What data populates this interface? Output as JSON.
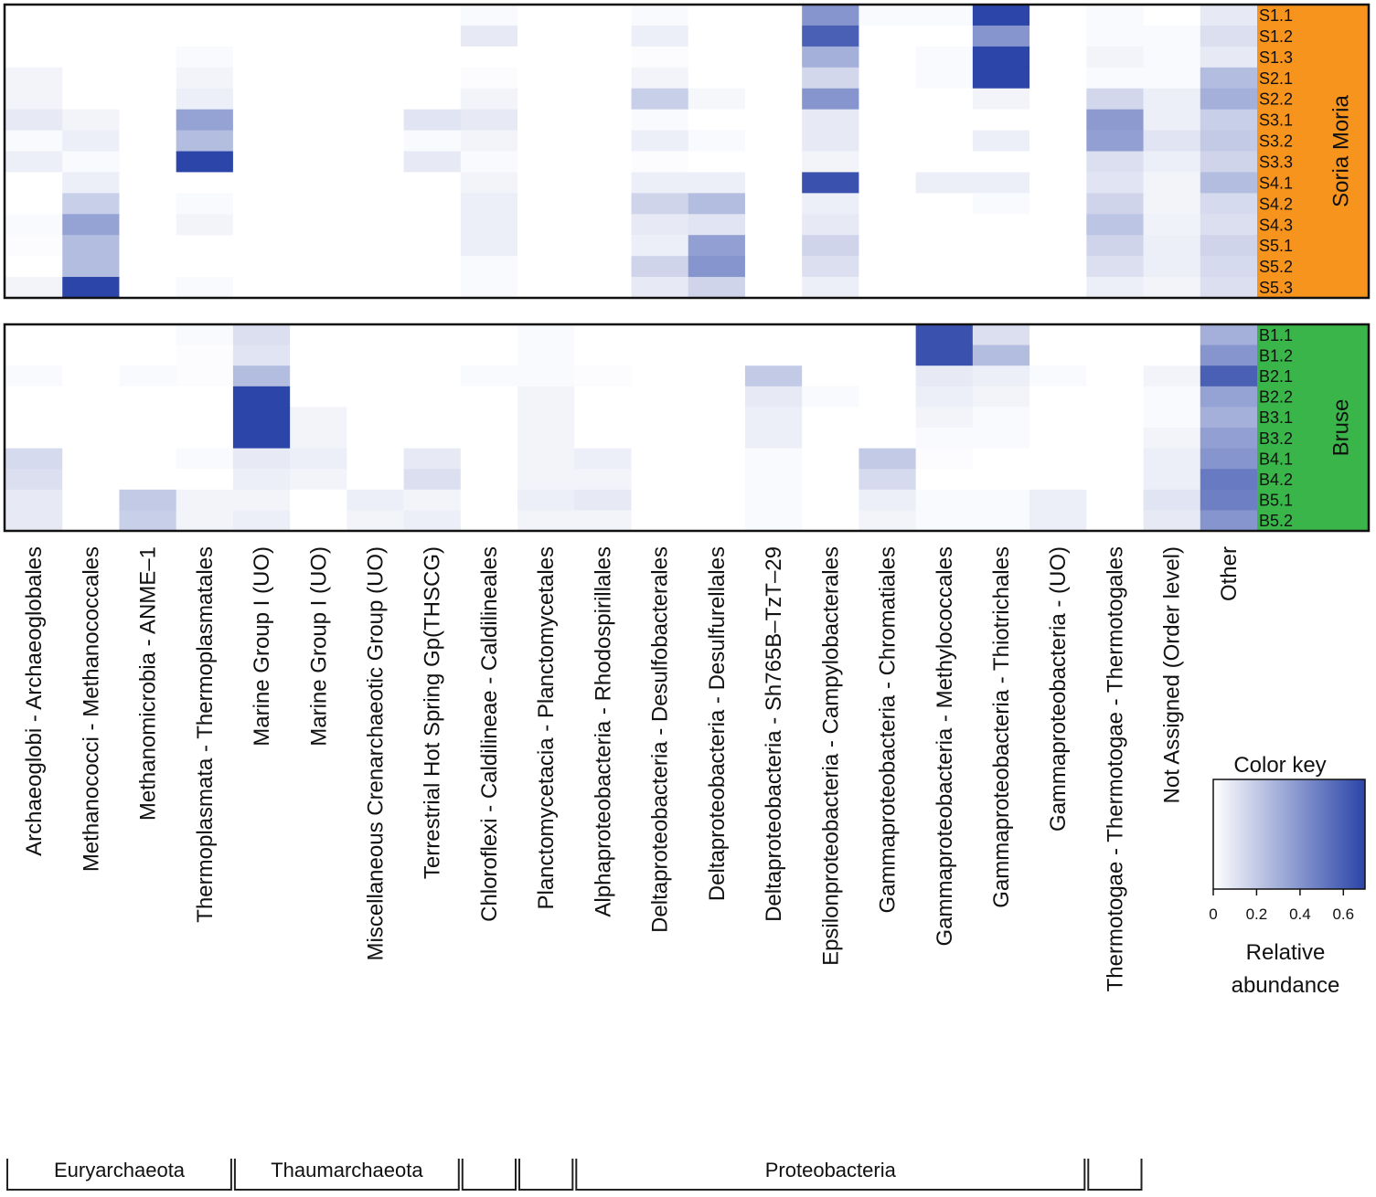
{
  "chart_data": {
    "type": "heatmap",
    "color_key": {
      "title": "Color key",
      "label_line1": "Relative",
      "label_line2": "abundance",
      "range": [
        0,
        0.7
      ],
      "ticks": [
        0,
        0.2,
        0.4,
        0.6
      ],
      "low_color": "#ffffff",
      "high_color": "#2b45a8"
    },
    "columns": [
      "Archaeoglobi - Archaeoglobales",
      "Methanococci - Methanococcales",
      "Methanomicrobia - ANME–1",
      "Thermoplasmata - Thermoplasmatales",
      "Marine Group I (UO)",
      "Marine Group I (UO)",
      "Miscellaneous Crenarchaeotic Group (UO)",
      "Terrestrial Hot Spring Gp(THSCG)",
      "Chloroflexi - Caldilineae - Caldilineales",
      "Planctomycetacia - Planctomycetales",
      "Alphaproteobacteria - Rhodospirillales",
      "Deltaproteobacteria - Desulfobacterales",
      "Deltaproteobacteria - Desulfurellales",
      "Deltaproteobacteria - Sh765B–TzT–29",
      "Epsilonproteobacteria - Campylobacterales",
      "Gammaproteobacteria - Chromatiales",
      "Gammaproteobacteria - Methylococcales",
      "Gammaproteobacteria - Thiotrichales",
      "Gammaproteobacteria -  (UO)",
      "Thermotogae - Thermotogae - Thermotogales",
      "Not Assigned (Order level)",
      "Other"
    ],
    "phyla": [
      {
        "name": "Euryarchaeota",
        "first_col": 0,
        "last_col": 3
      },
      {
        "name": "Thaumarchaeota",
        "first_col": 4,
        "last_col": 7
      },
      {
        "name": "",
        "first_col": 8,
        "last_col": 8
      },
      {
        "name": "",
        "first_col": 9,
        "last_col": 9
      },
      {
        "name": "Proteobacteria",
        "first_col": 10,
        "last_col": 18
      },
      {
        "name": "",
        "first_col": 19,
        "last_col": 19
      }
    ],
    "groups": [
      {
        "name": "Soria Moria",
        "color": "#f7941d",
        "rows": [
          "S1.1",
          "S1.2",
          "S1.3",
          "S2.1",
          "S2.2",
          "S3.1",
          "S3.2",
          "S3.3",
          "S4.1",
          "S4.2",
          "S4.3",
          "S5.1",
          "S5.2",
          "S5.3"
        ],
        "values": [
          [
            0,
            0,
            0,
            0,
            0,
            0,
            0,
            0,
            0.02,
            0,
            0,
            0.02,
            0,
            0,
            0.4,
            0.02,
            0.02,
            0.7,
            0,
            0.02,
            0,
            0.08
          ],
          [
            0,
            0,
            0,
            0,
            0,
            0,
            0,
            0,
            0.08,
            0,
            0,
            0.06,
            0,
            0,
            0.6,
            0,
            0,
            0.4,
            0,
            0.02,
            0.02,
            0.12
          ],
          [
            0,
            0,
            0,
            0.02,
            0,
            0,
            0,
            0,
            0,
            0,
            0,
            0.01,
            0,
            0,
            0.3,
            0,
            0.02,
            0.7,
            0,
            0.04,
            0.02,
            0.08
          ],
          [
            0.04,
            0,
            0,
            0.04,
            0,
            0,
            0,
            0,
            0.01,
            0,
            0,
            0.04,
            0,
            0,
            0.15,
            0,
            0.02,
            0.7,
            0,
            0.02,
            0.02,
            0.25
          ],
          [
            0.04,
            0,
            0,
            0.06,
            0,
            0,
            0,
            0,
            0.04,
            0,
            0,
            0.18,
            0.03,
            0,
            0.4,
            0,
            0,
            0.04,
            0,
            0.15,
            0.06,
            0.3
          ],
          [
            0.08,
            0.04,
            0,
            0.35,
            0,
            0,
            0,
            0.1,
            0.08,
            0,
            0,
            0.02,
            0,
            0,
            0.08,
            0,
            0,
            0,
            0,
            0.38,
            0.06,
            0.18
          ],
          [
            0.02,
            0.06,
            0,
            0.25,
            0,
            0,
            0,
            0.02,
            0.04,
            0,
            0,
            0.06,
            0.02,
            0,
            0.08,
            0,
            0,
            0.06,
            0,
            0.36,
            0.1,
            0.2
          ],
          [
            0.06,
            0.02,
            0,
            0.7,
            0,
            0,
            0,
            0.08,
            0.02,
            0,
            0,
            0.01,
            0,
            0,
            0.04,
            0,
            0,
            0,
            0,
            0.12,
            0.06,
            0.16
          ],
          [
            0,
            0.06,
            0,
            0,
            0,
            0,
            0,
            0,
            0.04,
            0,
            0,
            0.06,
            0.06,
            0,
            0.65,
            0,
            0.06,
            0.06,
            0,
            0.1,
            0.04,
            0.25
          ],
          [
            0,
            0.18,
            0,
            0.02,
            0,
            0,
            0,
            0,
            0.06,
            0,
            0,
            0.16,
            0.25,
            0,
            0.06,
            0,
            0,
            0.02,
            0,
            0.16,
            0.04,
            0.14
          ],
          [
            0.02,
            0.35,
            0,
            0.04,
            0,
            0,
            0,
            0,
            0.06,
            0,
            0,
            0.08,
            0.1,
            0,
            0.08,
            0,
            0,
            0,
            0,
            0.22,
            0.05,
            0.12
          ],
          [
            0.01,
            0.25,
            0,
            0,
            0,
            0,
            0,
            0,
            0.06,
            0,
            0,
            0.06,
            0.36,
            0,
            0.16,
            0,
            0,
            0,
            0,
            0.16,
            0.06,
            0.16
          ],
          [
            0,
            0.25,
            0,
            0,
            0,
            0,
            0,
            0,
            0.02,
            0,
            0,
            0.16,
            0.4,
            0,
            0.12,
            0,
            0,
            0,
            0,
            0.12,
            0.06,
            0.14
          ],
          [
            0.04,
            0.7,
            0,
            0.02,
            0,
            0,
            0,
            0,
            0.02,
            0,
            0,
            0.08,
            0.16,
            0,
            0.06,
            0,
            0,
            0,
            0,
            0.06,
            0.04,
            0.12
          ]
        ]
      },
      {
        "name": "Bruse",
        "color": "#3ab54a",
        "rows": [
          "B1.1",
          "B1.2",
          "B2.1",
          "B2.2",
          "B3.1",
          "B3.2",
          "B4.1",
          "B4.2",
          "B5.1",
          "B5.2"
        ],
        "values": [
          [
            0,
            0,
            0,
            0.02,
            0.12,
            0,
            0,
            0,
            0,
            0.02,
            0,
            0,
            0,
            0,
            0,
            0,
            0.65,
            0.12,
            0,
            0,
            0,
            0.3
          ],
          [
            0,
            0,
            0,
            0.01,
            0.1,
            0,
            0,
            0,
            0,
            0.02,
            0,
            0,
            0,
            0,
            0,
            0,
            0.65,
            0.25,
            0,
            0,
            0,
            0.4
          ],
          [
            0.02,
            0,
            0.02,
            0.01,
            0.25,
            0,
            0,
            0,
            0.02,
            0.02,
            0.01,
            0,
            0,
            0.2,
            0,
            0,
            0.08,
            0.06,
            0.02,
            0,
            0.04,
            0.6
          ],
          [
            0,
            0,
            0,
            0,
            0.7,
            0,
            0,
            0,
            0,
            0.04,
            0,
            0,
            0,
            0.08,
            0.02,
            0,
            0.06,
            0.04,
            0,
            0,
            0.02,
            0.35
          ],
          [
            0,
            0,
            0,
            0,
            0.7,
            0.04,
            0,
            0,
            0,
            0.04,
            0,
            0,
            0,
            0.06,
            0,
            0,
            0.04,
            0.02,
            0,
            0,
            0.02,
            0.3
          ],
          [
            0,
            0,
            0,
            0,
            0.7,
            0.04,
            0,
            0,
            0,
            0.04,
            0,
            0,
            0,
            0.06,
            0,
            0,
            0.02,
            0.02,
            0,
            0,
            0.04,
            0.36
          ],
          [
            0.14,
            0,
            0,
            0.02,
            0.08,
            0.06,
            0,
            0.08,
            0,
            0.04,
            0.06,
            0,
            0,
            0.02,
            0,
            0.2,
            0.01,
            0,
            0,
            0,
            0.06,
            0.4
          ],
          [
            0.12,
            0,
            0,
            0,
            0.06,
            0.04,
            0,
            0.12,
            0,
            0.04,
            0.04,
            0,
            0,
            0.02,
            0,
            0.14,
            0,
            0,
            0,
            0,
            0.06,
            0.5
          ],
          [
            0.08,
            0,
            0.2,
            0.04,
            0.04,
            0,
            0.06,
            0.04,
            0,
            0.06,
            0.08,
            0,
            0,
            0.02,
            0,
            0.06,
            0.02,
            0.02,
            0.06,
            0,
            0.1,
            0.48
          ],
          [
            0.08,
            0,
            0.18,
            0.04,
            0.06,
            0,
            0.04,
            0.06,
            0,
            0.04,
            0.04,
            0,
            0,
            0.02,
            0,
            0.04,
            0.02,
            0.02,
            0.06,
            0,
            0.08,
            0.4
          ]
        ]
      }
    ]
  }
}
